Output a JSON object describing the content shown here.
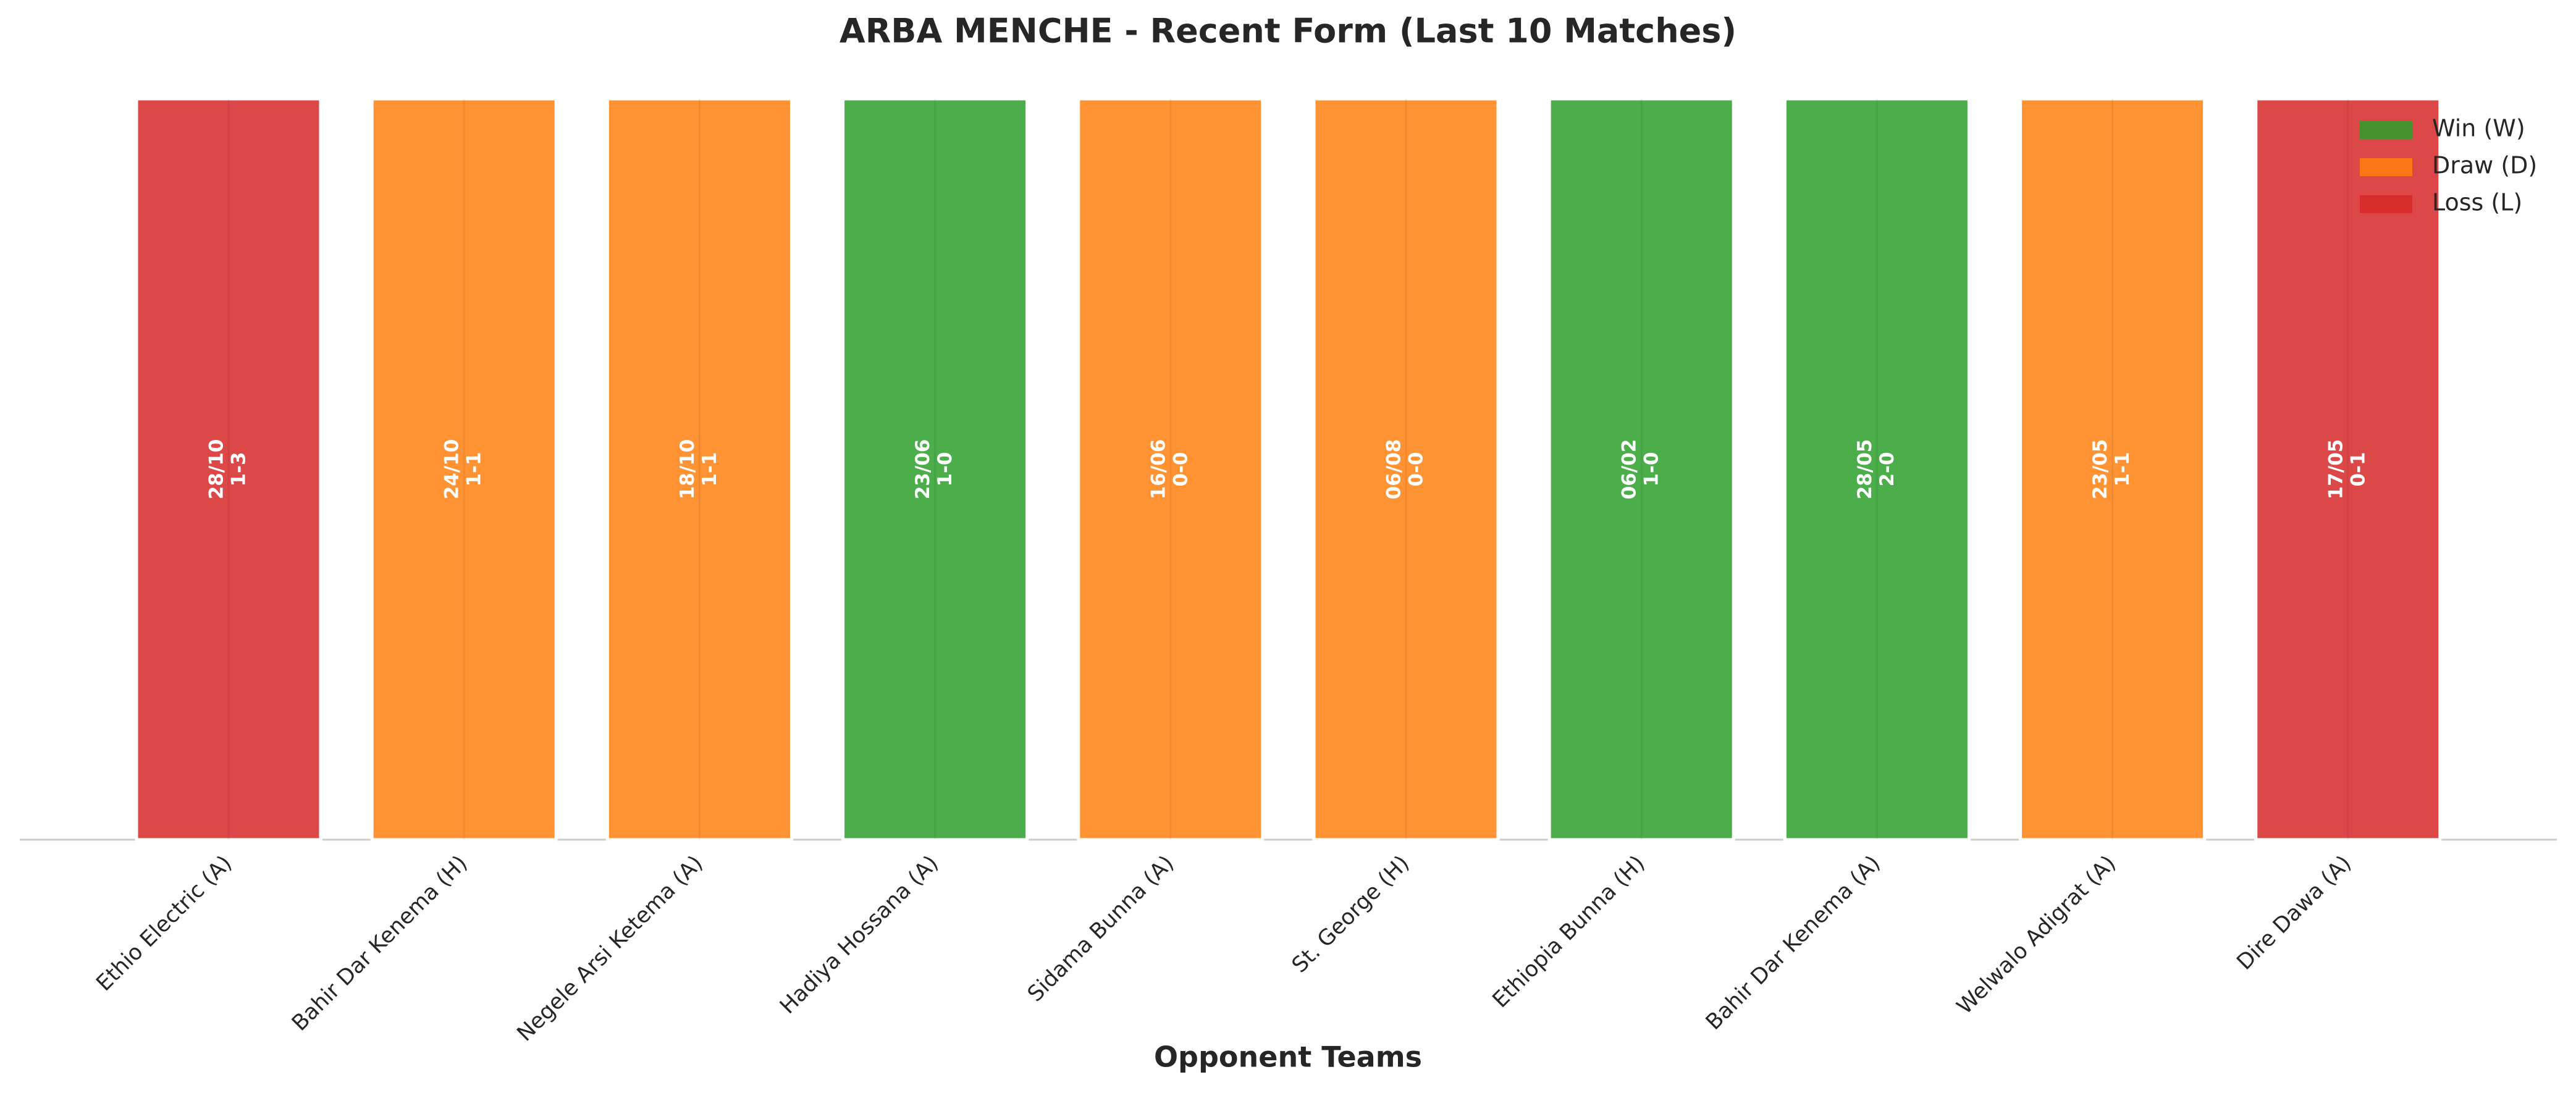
{
  "chart_data": {
    "type": "bar",
    "title": "ARBA MENCHE - Recent Form (Last 10 Matches)",
    "x_label": "Opponent Teams",
    "categories": [
      "Ethio Electric (A)",
      "Bahir Dar Kenema (H)",
      "Negele Arsi Ketema (A)",
      "Hadiya Hossana (A)",
      "Sidama Bunna (A)",
      "St. George (H)",
      "Ethiopia Bunna (H)",
      "Bahir Dar Kenema (A)",
      "Welwalo Adigrat (A)",
      "Dire Dawa (A)"
    ],
    "values": [
      1,
      1,
      1,
      1,
      1,
      1,
      1,
      1,
      1,
      1
    ],
    "colors": [
      "#d62728",
      "#ff7f0e",
      "#ff7f0e",
      "#2ca02c",
      "#ff7f0e",
      "#ff7f0e",
      "#2ca02c",
      "#2ca02c",
      "#ff7f0e",
      "#d62728"
    ],
    "dates": [
      "28/10",
      "24/10",
      "18/10",
      "23/06",
      "16/06",
      "06/08",
      "06/02",
      "28/05",
      "23/05",
      "17/05"
    ],
    "scores": [
      "1-3",
      "1-1",
      "1-1",
      "1-0",
      "0-0",
      "0-0",
      "1-0",
      "2-0",
      "1-1",
      "0-1"
    ],
    "ylim": [
      0,
      1.05
    ],
    "legend": {
      "position": "upper right",
      "entries": [
        {
          "name": "Win (W)",
          "color": "#2ca02c"
        },
        {
          "name": "Draw (D)",
          "color": "#ff7f0e"
        },
        {
          "name": "Loss (L)",
          "color": "#d62728"
        }
      ]
    }
  }
}
